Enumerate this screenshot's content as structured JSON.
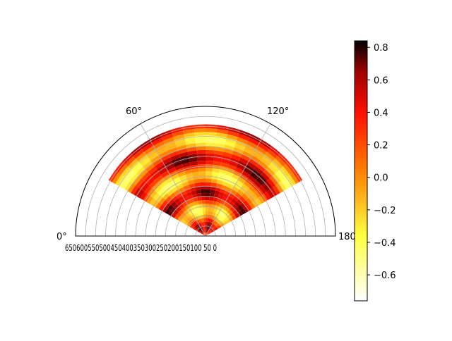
{
  "chart_data": {
    "type": "heatmap",
    "projection": "polar-half",
    "angle_ticks": [
      "0°",
      "60°",
      "120°",
      "180°"
    ],
    "radial_tick_labels": "650600550500450400350300250200150100 50 0",
    "radial_ticks": [
      650,
      600,
      550,
      500,
      450,
      400,
      350,
      300,
      250,
      200,
      150,
      100,
      50,
      0
    ],
    "rlim": [
      0,
      650
    ],
    "thetalim_deg": [
      0,
      180
    ],
    "grid": true,
    "colormap": "hot_r",
    "colorbar": {
      "ticks": [
        0.8,
        0.6,
        0.4,
        0.2,
        0.0,
        -0.2,
        -0.4,
        -0.6
      ],
      "tick_labels": [
        "0.8",
        "0.6",
        "0.4",
        "0.2",
        "0.0",
        "−0.2",
        "−0.4",
        "−0.6"
      ],
      "vmin": -0.76,
      "vmax": 0.84,
      "placement": "right"
    },
    "sectors": [
      {
        "theta_min_deg": 60,
        "theta_max_deg": 120,
        "r_min": 0,
        "r_max": 560
      },
      {
        "theta_min_deg": 30,
        "theta_max_deg": 60,
        "r_min": 0,
        "r_max": 560
      },
      {
        "theta_min_deg": 120,
        "theta_max_deg": 150,
        "r_min": 0,
        "r_max": 560
      }
    ]
  }
}
